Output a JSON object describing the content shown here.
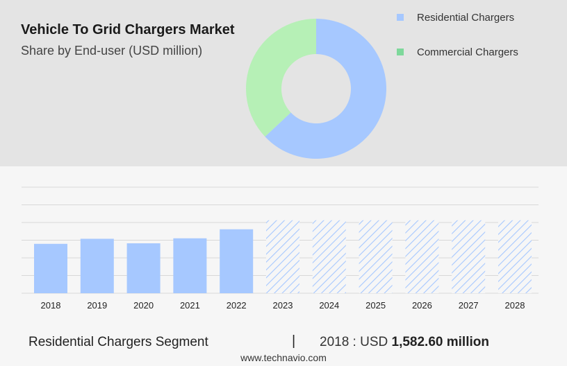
{
  "title": "Vehicle To Grid Chargers Market",
  "subtitle": "Share by End-user (USD million)",
  "legend": [
    {
      "label": "Residential Chargers",
      "color": "#a6c8ff"
    },
    {
      "label": "Commercial Chargers",
      "color": "#7ed89b"
    }
  ],
  "colors": {
    "top_panel": "#e4e4e4",
    "bottom_panel": "#f6f6f6",
    "bar": "#a6c8ff",
    "forecast_hatch": "#a6c8ff",
    "donut_residential": "#a6c8ff",
    "donut_commercial": "#b6f0b6"
  },
  "chart_data": [
    {
      "type": "pie",
      "variant": "donut",
      "title": "Share by End-user (USD million)",
      "categories": [
        "Residential Chargers",
        "Commercial Chargers"
      ],
      "values": [
        63,
        37
      ],
      "value_unit": "percent (estimated)"
    },
    {
      "type": "bar",
      "categories": [
        "2018",
        "2019",
        "2020",
        "2021",
        "2022",
        "2023",
        "2024",
        "2025",
        "2026",
        "2027",
        "2028"
      ],
      "values": [
        1582.6,
        1745,
        1600,
        1760,
        2050,
        null,
        null,
        null,
        null,
        null,
        null
      ],
      "forecast_years": [
        "2023",
        "2024",
        "2025",
        "2026",
        "2027",
        "2028"
      ],
      "forecast_style": "hatched",
      "ylim": [
        0,
        3400
      ],
      "grid": true,
      "xlabel": "",
      "ylabel": ""
    }
  ],
  "footer": {
    "segment": "Residential Chargers Segment",
    "divider": "|",
    "value_prefix": "2018 : USD",
    "value": "1,582.60 million"
  },
  "source": "www.technavio.com"
}
